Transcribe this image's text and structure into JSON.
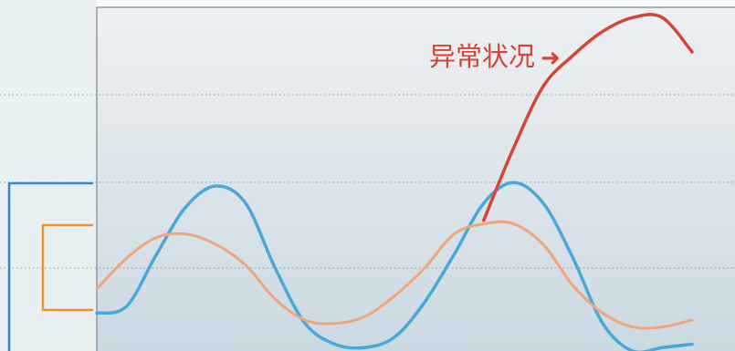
{
  "annotation": {
    "text": "异常状况",
    "arrow_glyph": "➜"
  },
  "colors": {
    "background_top": "#eef1f3",
    "background_bottom": "#cbd9e2",
    "left_panel": "#e9f0f2",
    "frame": "#8f99a1",
    "grid": "#8a9aa6",
    "blue": "#4aa7d9",
    "orange": "#f1a57a",
    "red": "#d64533",
    "bracket_blue": "#2f86c8",
    "bracket_orange": "#f0922e"
  },
  "chart_data": {
    "type": "line",
    "title": "",
    "xlabel": "",
    "ylabel": "",
    "grid": true,
    "legend": "none",
    "xlim": [
      0,
      100
    ],
    "ylim": [
      0,
      100
    ],
    "series": [
      {
        "color": "#4aa7d9",
        "points": [
          [
            0,
            11
          ],
          [
            5,
            13
          ],
          [
            10,
            28
          ],
          [
            15,
            42
          ],
          [
            20,
            48
          ],
          [
            25,
            43
          ],
          [
            30,
            24
          ],
          [
            35,
            8
          ],
          [
            40,
            2
          ],
          [
            45,
            1
          ],
          [
            50,
            4
          ],
          [
            55,
            14
          ],
          [
            60,
            28
          ],
          [
            65,
            43
          ],
          [
            70,
            49
          ],
          [
            75,
            43
          ],
          [
            80,
            27
          ],
          [
            85,
            8
          ],
          [
            90,
            0
          ],
          [
            95,
            1
          ],
          [
            100,
            2
          ]
        ]
      },
      {
        "color": "#f1a57a",
        "points": [
          [
            0,
            18
          ],
          [
            5,
            27
          ],
          [
            10,
            33
          ],
          [
            15,
            34
          ],
          [
            20,
            31
          ],
          [
            25,
            25
          ],
          [
            30,
            15
          ],
          [
            35,
            9
          ],
          [
            40,
            8
          ],
          [
            45,
            10
          ],
          [
            50,
            16
          ],
          [
            55,
            24
          ],
          [
            60,
            34
          ],
          [
            65,
            37
          ],
          [
            70,
            37
          ],
          [
            75,
            31
          ],
          [
            80,
            19
          ],
          [
            85,
            11
          ],
          [
            90,
            7
          ],
          [
            95,
            7
          ],
          [
            100,
            9
          ]
        ]
      },
      {
        "color": "#d64533",
        "points": [
          [
            65,
            38
          ],
          [
            70,
            59
          ],
          [
            75,
            77
          ],
          [
            80,
            86
          ],
          [
            85,
            93
          ],
          [
            90,
            97
          ],
          [
            95,
            97
          ],
          [
            100,
            87
          ]
        ]
      }
    ],
    "annotation": {
      "text": "异常状况"
    }
  }
}
